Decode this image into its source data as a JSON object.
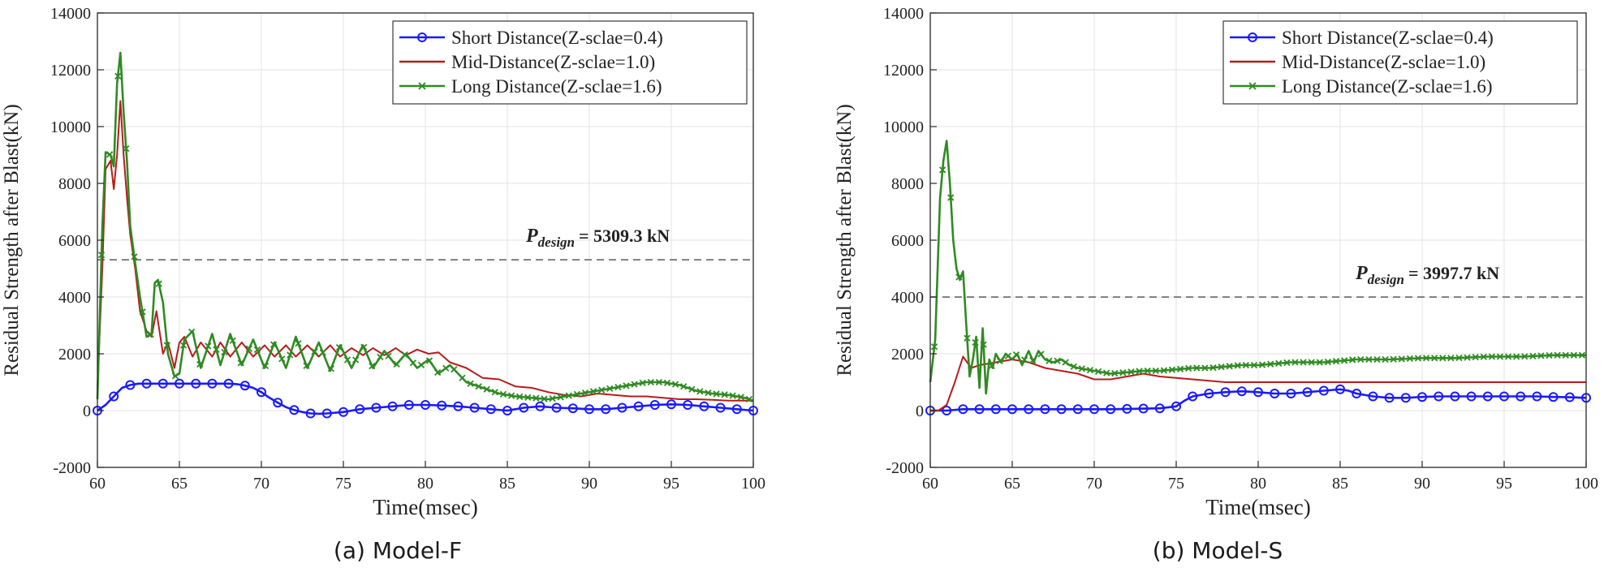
{
  "chart_data": [
    {
      "type": "line",
      "caption": "(a) Model-F",
      "xlabel": "Time(msec)",
      "ylabel": "Residual Strength after Blast(kN)",
      "xlim": [
        60,
        100
      ],
      "ylim": [
        -2000,
        14000
      ],
      "xticks": [
        60,
        65,
        70,
        75,
        80,
        85,
        90,
        95,
        100
      ],
      "yticks": [
        -2000,
        0,
        2000,
        4000,
        6000,
        8000,
        10000,
        12000,
        14000
      ],
      "grid": true,
      "legend_position": "top-right",
      "reference_line": {
        "y": 5309.3,
        "label_main": "P",
        "label_sub": "design",
        "label_value": "= 5309.3 kN"
      },
      "series": [
        {
          "name": "Short Distance(Z-sclae=0.4)",
          "color": "#1a1aff",
          "marker": "circle",
          "x": [
            60,
            60.5,
            61,
            61.5,
            62,
            62.5,
            63,
            64,
            65,
            66,
            67,
            68,
            68.5,
            69,
            69.5,
            70,
            70.5,
            71,
            71.5,
            72,
            72.5,
            73,
            73.5,
            74,
            75,
            76,
            77,
            78,
            79,
            80,
            81,
            82,
            83,
            84,
            85,
            86,
            87,
            88,
            89,
            90,
            91,
            92,
            93,
            94,
            95,
            96,
            97,
            98,
            99,
            100
          ],
          "y": [
            0,
            200,
            500,
            800,
            900,
            950,
            950,
            950,
            950,
            950,
            950,
            950,
            930,
            880,
            800,
            650,
            450,
            280,
            120,
            20,
            -50,
            -100,
            -110,
            -100,
            -50,
            50,
            100,
            150,
            200,
            200,
            180,
            150,
            100,
            50,
            0,
            100,
            150,
            100,
            80,
            50,
            50,
            100,
            150,
            200,
            220,
            200,
            150,
            100,
            50,
            0
          ]
        },
        {
          "name": "Mid-Distance(Z-sclae=1.0)",
          "color": "#b71c1c",
          "marker": "none",
          "x": [
            60,
            60.3,
            60.5,
            60.8,
            61,
            61.2,
            61.4,
            61.6,
            61.8,
            62,
            62.3,
            62.6,
            63,
            63.3,
            63.6,
            64,
            64.3,
            64.7,
            65,
            65.3,
            65.8,
            66.3,
            67,
            67.5,
            68.1,
            68.8,
            69.5,
            70.2,
            70.8,
            71.5,
            72.1,
            72.8,
            73.5,
            74.2,
            74.8,
            75.5,
            76.2,
            76.8,
            77.5,
            78.2,
            78.8,
            79.5,
            80.2,
            80.8,
            81.5,
            82.5,
            83.5,
            84.5,
            85.5,
            86.5,
            87.5,
            88.5,
            89.5,
            90.5,
            91.5,
            92.5,
            93.5,
            94.5,
            95.5,
            96.5,
            97.5,
            98.5,
            99.5,
            100
          ],
          "y": [
            800,
            5000,
            8500,
            8800,
            7800,
            9000,
            10900,
            9000,
            7500,
            6200,
            5000,
            3500,
            2800,
            2600,
            3500,
            2000,
            2400,
            1500,
            2400,
            2600,
            1900,
            2400,
            1900,
            2400,
            1900,
            2400,
            1900,
            2300,
            1900,
            2300,
            1900,
            2300,
            1900,
            2300,
            1900,
            2200,
            1950,
            2200,
            1950,
            2200,
            1950,
            2150,
            2000,
            2050,
            1700,
            1500,
            1150,
            1100,
            850,
            800,
            650,
            550,
            500,
            600,
            550,
            500,
            500,
            450,
            400,
            400,
            380,
            350,
            350,
            350
          ]
        },
        {
          "name": "Long Distance(Z-sclae=1.6)",
          "color": "#2e8b22",
          "marker": "x",
          "x": [
            60,
            60.3,
            60.5,
            60.8,
            61,
            61.2,
            61.4,
            61.6,
            61.8,
            62,
            62.3,
            62.6,
            63,
            63.3,
            63.5,
            63.7,
            64,
            64.3,
            64.7,
            65,
            65.3,
            65.8,
            66.3,
            67,
            67.5,
            68.1,
            68.8,
            69.5,
            70.2,
            70.8,
            71.5,
            72.1,
            72.8,
            73.5,
            74.2,
            74.8,
            75.5,
            76.2,
            76.8,
            77.5,
            78.2,
            78.8,
            79.5,
            80.2,
            80.8,
            81.5,
            82.5,
            83.5,
            84.5,
            85.5,
            86.5,
            87.5,
            88.5,
            89.5,
            90.5,
            91.5,
            92.5,
            93.5,
            94.5,
            95.5,
            96.5,
            97.5,
            98.5,
            99.5,
            100
          ],
          "y": [
            400,
            6500,
            9100,
            9000,
            8600,
            11500,
            12600,
            10500,
            8800,
            6500,
            5200,
            4000,
            2600,
            2700,
            4500,
            4600,
            3800,
            2000,
            1200,
            1300,
            2500,
            2800,
            1500,
            2700,
            1600,
            2700,
            1600,
            2500,
            1500,
            2400,
            1500,
            2600,
            1500,
            2400,
            1400,
            2300,
            1500,
            2300,
            1500,
            2100,
            1600,
            2000,
            1500,
            1800,
            1300,
            1600,
            1000,
            800,
            600,
            500,
            450,
            400,
            500,
            600,
            700,
            800,
            900,
            1000,
            1000,
            900,
            700,
            600,
            550,
            450,
            350
          ]
        }
      ]
    },
    {
      "type": "line",
      "caption": "(b) Model-S",
      "xlabel": "Time(msec)",
      "ylabel": "Residual Strength after Blast(kN)",
      "xlim": [
        60,
        100
      ],
      "ylim": [
        -2000,
        14000
      ],
      "xticks": [
        60,
        65,
        70,
        75,
        80,
        85,
        90,
        95,
        100
      ],
      "yticks": [
        -2000,
        0,
        2000,
        4000,
        6000,
        8000,
        10000,
        12000,
        14000
      ],
      "grid": true,
      "legend_position": "top-right",
      "reference_line": {
        "y": 3997.7,
        "label_main": "P",
        "label_sub": "design",
        "label_value": "= 3997.7 kN"
      },
      "series": [
        {
          "name": "Short Distance(Z-sclae=0.4)",
          "color": "#1a1aff",
          "marker": "circle",
          "x": [
            60,
            61,
            62,
            63,
            64,
            65,
            66,
            67,
            68,
            69,
            70,
            71,
            72,
            73,
            74,
            75,
            75.5,
            76,
            77,
            78,
            79,
            80,
            81,
            82,
            83,
            84,
            85,
            85.5,
            86,
            87,
            88,
            89,
            90,
            91,
            92,
            93,
            94,
            95,
            96,
            97,
            98,
            99,
            100
          ],
          "y": [
            0,
            0,
            50,
            50,
            50,
            50,
            50,
            50,
            50,
            50,
            50,
            50,
            60,
            70,
            80,
            150,
            350,
            500,
            600,
            650,
            680,
            650,
            600,
            600,
            650,
            700,
            750,
            700,
            600,
            500,
            450,
            450,
            480,
            500,
            500,
            500,
            500,
            500,
            500,
            500,
            480,
            470,
            450
          ]
        },
        {
          "name": "Mid-Distance(Z-sclae=1.0)",
          "color": "#b71c1c",
          "marker": "none",
          "x": [
            60,
            60.5,
            61,
            61.5,
            62,
            62.5,
            63,
            64,
            65,
            66,
            67,
            68,
            69,
            70,
            71,
            72,
            73,
            74,
            75,
            76,
            77,
            78,
            80,
            85,
            90,
            95,
            100
          ],
          "y": [
            0,
            0,
            200,
            1000,
            1900,
            1500,
            1600,
            1700,
            1800,
            1700,
            1500,
            1400,
            1300,
            1100,
            1100,
            1200,
            1300,
            1200,
            1150,
            1100,
            1050,
            1000,
            1000,
            1000,
            1000,
            1000,
            1000
          ]
        },
        {
          "name": "Long Distance(Z-sclae=1.6)",
          "color": "#2e8b22",
          "marker": "x",
          "x": [
            60,
            60.3,
            60.6,
            60.8,
            61,
            61.2,
            61.4,
            61.6,
            61.8,
            62,
            62.2,
            62.4,
            62.6,
            62.8,
            63,
            63.2,
            63.4,
            63.6,
            63.8,
            64,
            64.3,
            64.6,
            65,
            65.3,
            65.6,
            66,
            66.3,
            66.6,
            67,
            67.5,
            68,
            68.5,
            69,
            70,
            71,
            72,
            73,
            74,
            75,
            76,
            77,
            78,
            79,
            80,
            82,
            84,
            86,
            88,
            90,
            92,
            94,
            96,
            98,
            100
          ],
          "y": [
            1000,
            2500,
            7500,
            8800,
            9500,
            8000,
            6000,
            5000,
            4600,
            4900,
            3000,
            1200,
            1800,
            2600,
            800,
            2900,
            600,
            1800,
            1500,
            2000,
            1700,
            2000,
            1800,
            2000,
            1600,
            2100,
            1700,
            2100,
            1800,
            1700,
            1800,
            1600,
            1500,
            1400,
            1300,
            1350,
            1400,
            1400,
            1450,
            1500,
            1500,
            1550,
            1600,
            1600,
            1700,
            1700,
            1800,
            1800,
            1850,
            1850,
            1900,
            1900,
            1950,
            1950
          ]
        }
      ]
    }
  ]
}
